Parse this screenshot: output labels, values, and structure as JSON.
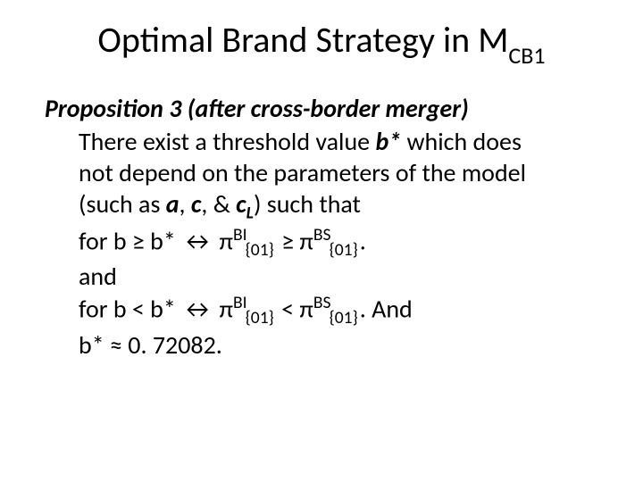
{
  "title": {
    "main": "Optimal Brand Strategy in M",
    "sub": "CB1"
  },
  "prop_heading": "Proposition 3 (after cross-border merger)",
  "line1_a": "There exist a threshold value ",
  "line1_bstar": "b*",
  "line1_b": " which does",
  "line2": "not depend on the parameters of the model",
  "line3_a": "(such as ",
  "p_a": "a",
  "comma1": ", ",
  "p_c": "c",
  "comma2": ", & ",
  "p_cL": "c",
  "p_cL_sub": "L",
  "line3_b": ") such that",
  "line4_a": "for b ≥ b* ↔ π",
  "sup_BI": "BI",
  "sub_01": "{01}",
  "geq": " ≥  π",
  "sup_BS": "BS",
  "dot": ".",
  "line5": "and",
  "line6_a": "for b < b* ↔ π",
  "lt": " <  π",
  "and_end": ". And",
  "line7": "b* ≈ 0. 72082."
}
